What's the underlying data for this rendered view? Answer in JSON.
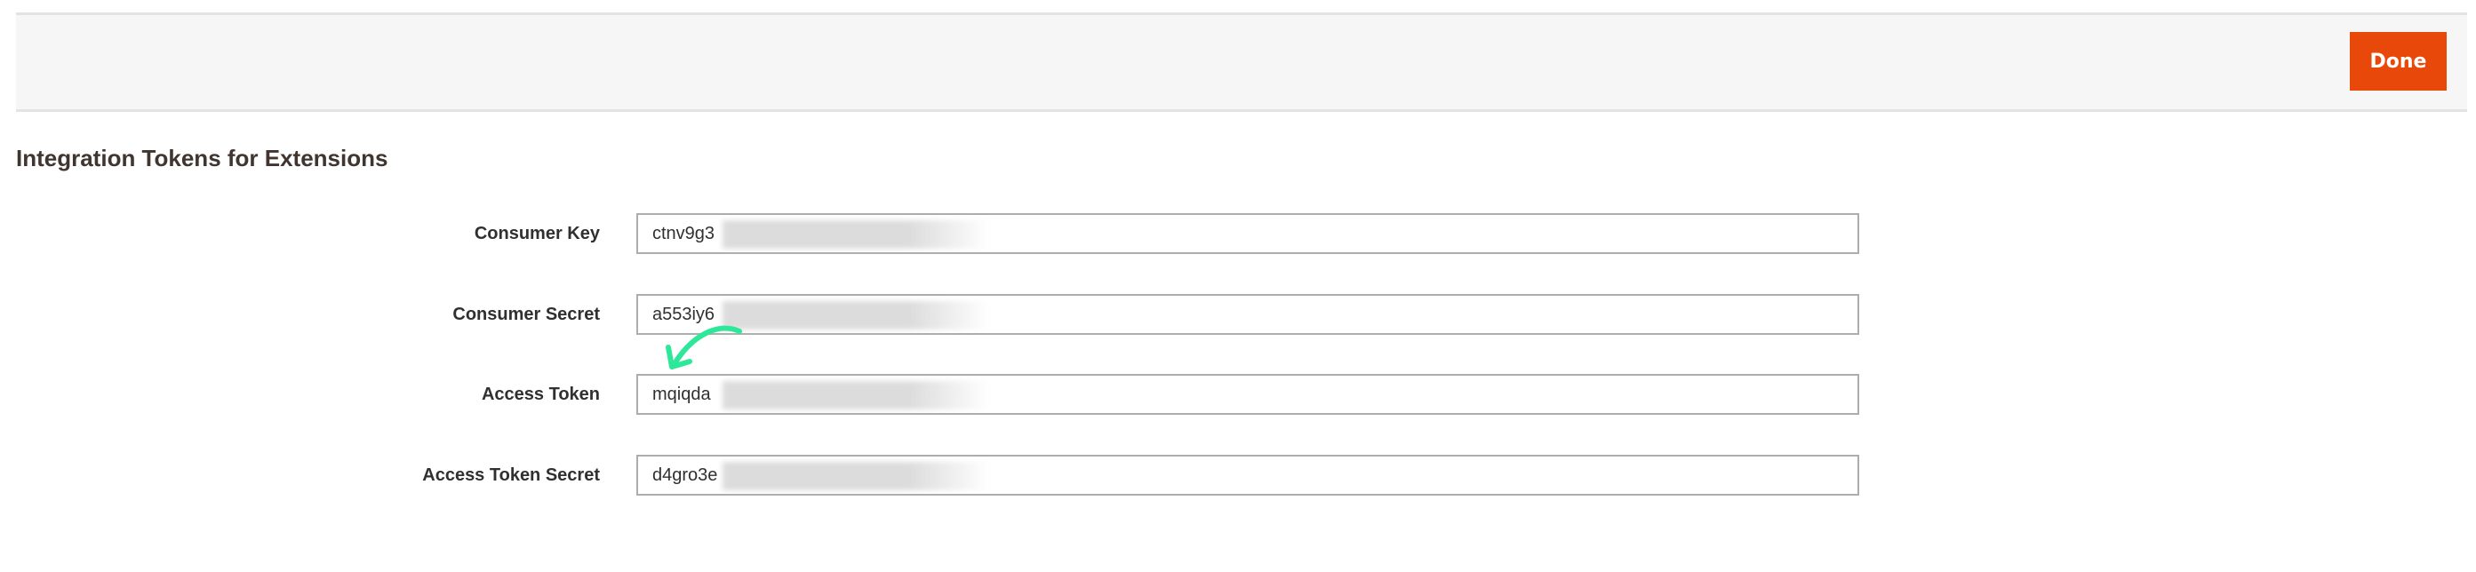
{
  "header": {
    "done_label": "Done",
    "done_color": "#e8490a"
  },
  "section": {
    "title": "Integration Tokens for Extensions"
  },
  "fields": [
    {
      "label": "Consumer Key",
      "value": "ctnv9g3"
    },
    {
      "label": "Consumer Secret",
      "value": "a553iy6"
    },
    {
      "label": "Access Token",
      "value": "mqiqda"
    },
    {
      "label": "Access Token Secret",
      "value": "d4gro3e"
    }
  ],
  "annotation": {
    "icon": "curved-arrow-icon",
    "color": "#2ee89a"
  }
}
